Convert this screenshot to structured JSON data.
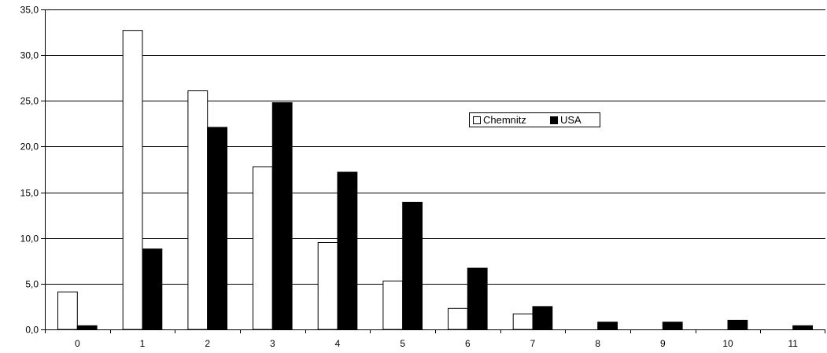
{
  "chart_data": {
    "type": "bar",
    "title": "",
    "xlabel": "",
    "ylabel": "",
    "categories": [
      "0",
      "1",
      "2",
      "3",
      "4",
      "5",
      "6",
      "7",
      "8",
      "9",
      "10",
      "11"
    ],
    "series": [
      {
        "name": "Chemnitz",
        "color": "#ffffff",
        "values": [
          4.1,
          32.7,
          26.1,
          17.8,
          9.5,
          5.3,
          2.3,
          1.7,
          0.0,
          0.0,
          0.0,
          0.0
        ]
      },
      {
        "name": "USA",
        "color": "#000000",
        "values": [
          0.4,
          8.8,
          22.1,
          24.8,
          17.2,
          13.9,
          6.7,
          2.5,
          0.8,
          0.8,
          1.0,
          0.4
        ]
      }
    ],
    "ylim": [
      0,
      35
    ],
    "yticks": [
      0,
      5,
      10,
      15,
      20,
      25,
      30,
      35
    ],
    "ytick_labels": [
      "0,0",
      "5,0",
      "10,0",
      "15,0",
      "20,0",
      "25,0",
      "30,0",
      "35,0"
    ],
    "grid": true,
    "legend_position": "upper-right-center"
  }
}
